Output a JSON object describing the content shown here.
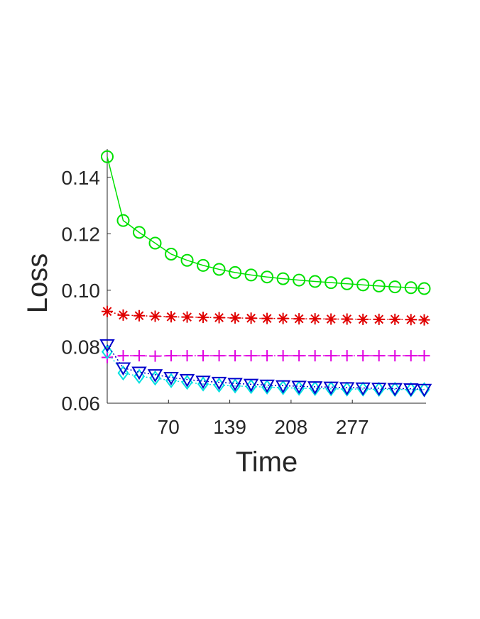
{
  "chart_data": {
    "type": "line",
    "title": "",
    "xlabel": "Time",
    "ylabel": "Loss",
    "xlim": [
      1,
      360
    ],
    "ylim": [
      0.06,
      0.15
    ],
    "x_ticks": [
      70,
      139,
      208,
      277
    ],
    "x_tick_labels": [
      "70",
      "139",
      "208",
      "277"
    ],
    "y_ticks": [
      0.06,
      0.08,
      0.1,
      0.12,
      0.14
    ],
    "y_tick_labels": [
      "0.06",
      "0.08",
      "0.10",
      "0.12",
      "0.14"
    ],
    "grid": false,
    "legend": "none",
    "x": [
      1,
      19,
      37,
      55,
      73,
      91,
      109,
      127,
      145,
      163,
      181,
      199,
      217,
      235,
      253,
      271,
      289,
      307,
      325,
      343,
      361
    ],
    "series": [
      {
        "color": "#00e000",
        "marker": "circle",
        "line": "solid",
        "values": [
          0.1473,
          0.1247,
          0.1205,
          0.1167,
          0.1128,
          0.1106,
          0.1088,
          0.1074,
          0.1063,
          0.1054,
          0.1047,
          0.1041,
          0.1036,
          0.1031,
          0.1027,
          0.1023,
          0.1019,
          0.1015,
          0.1012,
          0.1009,
          0.1006
        ]
      },
      {
        "color": "#e00000",
        "marker": "asterisk",
        "line": "dotted",
        "values": [
          0.0925,
          0.0912,
          0.091,
          0.0908,
          0.0906,
          0.0905,
          0.0904,
          0.0903,
          0.0902,
          0.0901,
          0.09,
          0.09,
          0.0899,
          0.0899,
          0.0898,
          0.0898,
          0.0897,
          0.0897,
          0.0897,
          0.0896,
          0.0895
        ]
      },
      {
        "color": "#e000e0",
        "marker": "plus",
        "line": "dashdot",
        "values": [
          0.0762,
          0.0768,
          0.0768,
          0.0767,
          0.0768,
          0.0768,
          0.0768,
          0.0768,
          0.0768,
          0.0768,
          0.0768,
          0.0768,
          0.0768,
          0.0768,
          0.0768,
          0.0768,
          0.0768,
          0.0768,
          0.0768,
          0.0768,
          0.0768
        ]
      },
      {
        "color": "#00e0e0",
        "marker": "diamond",
        "line": "dotted",
        "values": [
          0.0782,
          0.0707,
          0.0695,
          0.0689,
          0.068,
          0.0674,
          0.0668,
          0.0664,
          0.0661,
          0.0659,
          0.0657,
          0.0655,
          0.0653,
          0.0652,
          0.0651,
          0.065,
          0.065,
          0.0649,
          0.0649,
          0.0648,
          0.0648
        ]
      },
      {
        "color": "#0000cc",
        "marker": "triangle-down",
        "line": "dotted",
        "values": [
          0.0807,
          0.0725,
          0.071,
          0.0701,
          0.0691,
          0.0684,
          0.0678,
          0.0674,
          0.067,
          0.0667,
          0.0664,
          0.0662,
          0.066,
          0.0658,
          0.0657,
          0.0655,
          0.0654,
          0.0653,
          0.0652,
          0.0651,
          0.0649
        ]
      }
    ]
  }
}
